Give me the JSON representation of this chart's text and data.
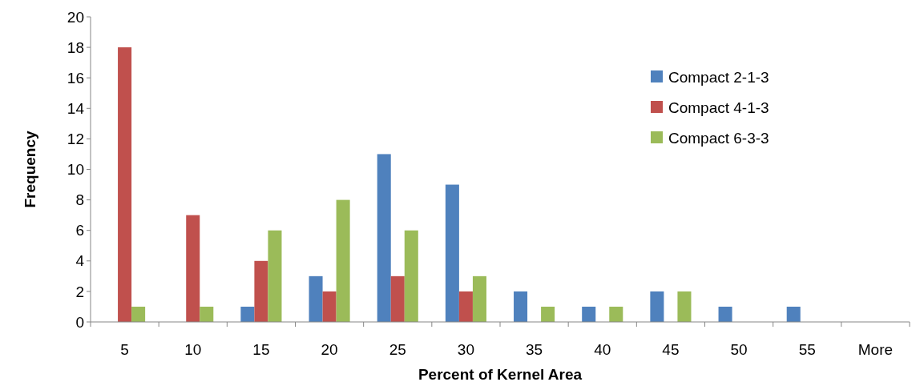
{
  "chart_data": {
    "type": "bar",
    "xlabel": "Percent of Kernel Area",
    "ylabel": "Frequency",
    "categories": [
      "5",
      "10",
      "15",
      "20",
      "25",
      "30",
      "35",
      "40",
      "45",
      "50",
      "55",
      "More"
    ],
    "series": [
      {
        "name": "Compact 2-1-3",
        "color": "#4f81bd",
        "values": [
          0,
          0,
          1,
          3,
          11,
          9,
          2,
          1,
          2,
          1,
          1,
          0
        ]
      },
      {
        "name": "Compact 4-1-3",
        "color": "#c0504d",
        "values": [
          18,
          7,
          4,
          2,
          3,
          2,
          0,
          0,
          0,
          0,
          0,
          0
        ]
      },
      {
        "name": "Compact 6-3-3",
        "color": "#9bbb59",
        "values": [
          1,
          1,
          6,
          8,
          6,
          3,
          1,
          1,
          2,
          0,
          0,
          0
        ]
      }
    ],
    "ylim": [
      0,
      20
    ],
    "yticks": [
      0,
      2,
      4,
      6,
      8,
      10,
      12,
      14,
      16,
      18,
      20
    ],
    "grid": false,
    "legend": "top right"
  }
}
